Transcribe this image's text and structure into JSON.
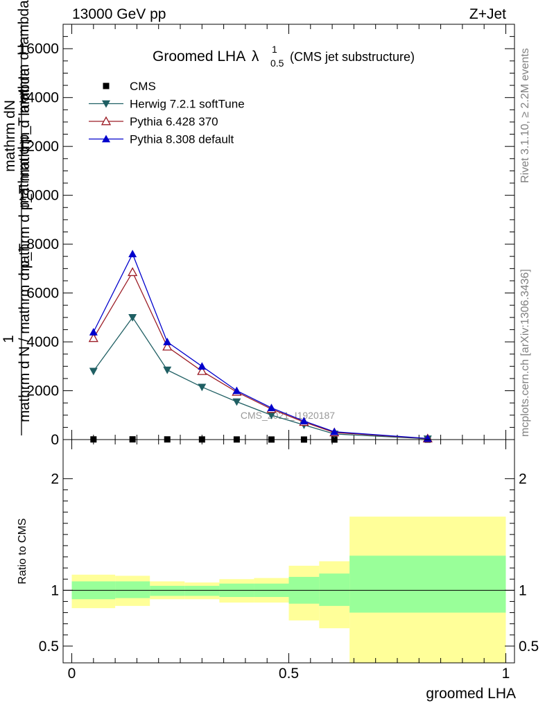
{
  "header": {
    "left": "13000 GeV pp",
    "right": "Z+Jet"
  },
  "side_labels": {
    "rivet": "Rivet 3.1.10, ≥ 2.2M events",
    "mcplots": "mcplots.cern.ch [arXiv:1306.3436]"
  },
  "watermark": "CMS_2021_I1920187",
  "colors": {
    "cms": "#000000",
    "herwig": "#1f5f63",
    "pythia6": "#9b1b24",
    "pythia8": "#0000cc",
    "band_inner": "#99ff99",
    "band_outer": "#ffff99"
  },
  "chart_data": [
    {
      "type": "line",
      "title_main": "Groomed LHA",
      "title_symbol": "λ",
      "title_sup": "1",
      "title_sub": "0.5",
      "title_suffix": "(CMS jet substructure)",
      "ylabel_top": "1",
      "ylabel_upper": "mathrm dN",
      "ylabel_upper2": "mathrm d p_T mathrm d lambda",
      "ylabel_lower": "mathrm d N / mathrm d p_T",
      "ylabel_lower2": "mathrm d p_T mathrm d lambda",
      "xlim": [
        -0.02,
        1.02
      ],
      "ylim": [
        0,
        17000
      ],
      "yticks": [
        {
          "v": 0,
          "label": "0"
        },
        {
          "v": 2000,
          "label": "2000"
        },
        {
          "v": 4000,
          "label": "4000"
        },
        {
          "v": 6000,
          "label": "6000"
        },
        {
          "v": 8000,
          "label": "8000"
        },
        {
          "v": 10000,
          "label": "10000"
        },
        {
          "v": 12000,
          "label": "12000"
        },
        {
          "v": 14000,
          "label": "14000"
        },
        {
          "v": 16000,
          "label": "16000"
        }
      ],
      "legend": [
        {
          "label": "CMS",
          "marker": "square"
        },
        {
          "label": "Herwig 7.2.1 softTune",
          "marker": "tri-down"
        },
        {
          "label": "Pythia 6.428 370",
          "marker": "tri-up-open"
        },
        {
          "label": "Pythia 8.308 default",
          "marker": "tri-up"
        }
      ],
      "series": [
        {
          "name": "CMS",
          "x": [
            0.05,
            0.14,
            0.22,
            0.3,
            0.38,
            0.46,
            0.535,
            0.605,
            0.82
          ],
          "y": [
            8,
            10,
            8,
            6,
            5,
            3,
            2,
            1,
            0.4
          ]
        },
        {
          "name": "Herwig 7.2.1 softTune",
          "x": [
            0.05,
            0.14,
            0.22,
            0.3,
            0.38,
            0.46,
            0.535,
            0.605,
            0.82
          ],
          "y": [
            2800,
            5000,
            2850,
            2150,
            1550,
            1000,
            600,
            230,
            30
          ]
        },
        {
          "name": "Pythia 6.428 370",
          "x": [
            0.05,
            0.14,
            0.22,
            0.3,
            0.38,
            0.46,
            0.535,
            0.605,
            0.82
          ],
          "y": [
            4150,
            6850,
            3800,
            2800,
            1950,
            1250,
            720,
            290,
            40
          ]
        },
        {
          "name": "Pythia 8.308 default",
          "x": [
            0.05,
            0.14,
            0.22,
            0.3,
            0.38,
            0.46,
            0.535,
            0.605,
            0.82
          ],
          "y": [
            4400,
            7600,
            4000,
            3000,
            2000,
            1300,
            760,
            320,
            45
          ]
        }
      ]
    },
    {
      "type": "area",
      "ylabel": "Ratio to CMS",
      "xlabel": "groomed LHA",
      "xlim": [
        -0.02,
        1.02
      ],
      "ylim": [
        0.35,
        2.35
      ],
      "yticks": [
        {
          "v": 0.5,
          "label": "0.5"
        },
        {
          "v": 1,
          "label": "1"
        },
        {
          "v": 2,
          "label": "2"
        }
      ],
      "xticks": [
        {
          "v": 0,
          "label": "0"
        },
        {
          "v": 0.5,
          "label": "0.5"
        },
        {
          "v": 1,
          "label": "1"
        }
      ],
      "bins": [
        {
          "lo": 0.0,
          "hi": 0.1,
          "inner": [
            0.92,
            1.08
          ],
          "outer": [
            0.84,
            1.14
          ]
        },
        {
          "lo": 0.1,
          "hi": 0.18,
          "inner": [
            0.93,
            1.08
          ],
          "outer": [
            0.86,
            1.13
          ]
        },
        {
          "lo": 0.18,
          "hi": 0.26,
          "inner": [
            0.95,
            1.04
          ],
          "outer": [
            0.92,
            1.08
          ]
        },
        {
          "lo": 0.26,
          "hi": 0.34,
          "inner": [
            0.95,
            1.04
          ],
          "outer": [
            0.92,
            1.07
          ]
        },
        {
          "lo": 0.34,
          "hi": 0.42,
          "inner": [
            0.94,
            1.06
          ],
          "outer": [
            0.89,
            1.1
          ]
        },
        {
          "lo": 0.42,
          "hi": 0.5,
          "inner": [
            0.94,
            1.06
          ],
          "outer": [
            0.89,
            1.11
          ]
        },
        {
          "lo": 0.5,
          "hi": 0.57,
          "inner": [
            0.88,
            1.12
          ],
          "outer": [
            0.73,
            1.22
          ]
        },
        {
          "lo": 0.57,
          "hi": 0.64,
          "inner": [
            0.86,
            1.15
          ],
          "outer": [
            0.66,
            1.26
          ]
        },
        {
          "lo": 0.64,
          "hi": 1.0,
          "inner": [
            0.8,
            1.31
          ],
          "outer": [
            0.35,
            1.66
          ]
        }
      ]
    }
  ]
}
